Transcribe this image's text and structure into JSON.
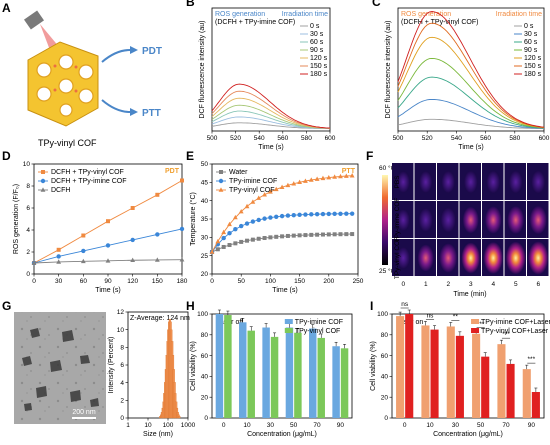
{
  "panels": {
    "A": {
      "label": "A",
      "caption": "TPy-vinyl COF",
      "pdt": "PDT",
      "ptt": "PTT",
      "colors": {
        "pdt": "#4a86c8",
        "ptt": "#4a86c8"
      }
    },
    "F": {
      "label": "F",
      "rows": [
        "PBS",
        "TPy-imine COF",
        "TPy-vinyl COF"
      ],
      "xticks": [
        "0",
        "1",
        "2",
        "3",
        "4",
        "5",
        "6"
      ],
      "xlabel": "Time (min)",
      "cbar": {
        "max": "60 °C",
        "min": "25 °C"
      },
      "intensity": [
        [
          0.1,
          0.12,
          0.14,
          0.16,
          0.17,
          0.18,
          0.19
        ],
        [
          0.1,
          0.25,
          0.35,
          0.42,
          0.48,
          0.52,
          0.55
        ],
        [
          0.12,
          0.45,
          0.62,
          0.74,
          0.82,
          0.88,
          0.92
        ]
      ]
    },
    "G": {
      "label": "G",
      "scalebar": "200 nm",
      "hist_title": "Z-Average: 124 nm",
      "xlabel": "Size (nm)",
      "ylabel": "Intensity (Percent)"
    }
  },
  "chart_data": [
    {
      "id": "B",
      "type": "line",
      "label": "B",
      "legend_title_left": "ROS generation",
      "legend_subtitle": "(DCFH + TPy-imine COF)",
      "legend_title_right": "Irradiation time",
      "xlabel": "Time (s)",
      "ylabel": "DCF fluorescence intensity (au)",
      "xlim": [
        500,
        600
      ],
      "xticks": [
        "500",
        "520",
        "540",
        "560",
        "580",
        "600"
      ],
      "series": [
        {
          "name": "0 s",
          "color": "#a0a0a0",
          "peak": 0.05
        },
        {
          "name": "30 s",
          "color": "#9dbfe0",
          "peak": 0.1
        },
        {
          "name": "60 s",
          "color": "#8ac6b8",
          "peak": 0.15
        },
        {
          "name": "90 s",
          "color": "#a8c878",
          "peak": 0.2
        },
        {
          "name": "120 s",
          "color": "#e5b860",
          "peak": 0.26
        },
        {
          "name": "150 s",
          "color": "#e5885a",
          "peak": 0.32
        },
        {
          "name": "180 s",
          "color": "#d02020",
          "peak": 0.38
        }
      ],
      "ymax": 1.05
    },
    {
      "id": "C",
      "type": "line",
      "label": "C",
      "legend_title_left": "ROS generation",
      "legend_subtitle": "(DCFH + TPy-vinyl COF)",
      "legend_title_right": "Irradiation time",
      "xlabel": "Time (s)",
      "ylabel": "DCF fluorescence intensity (au)",
      "xlim": [
        500,
        600
      ],
      "xticks": [
        "500",
        "520",
        "540",
        "560",
        "580",
        "600"
      ],
      "series": [
        {
          "name": "0 s",
          "color": "#a0a0a0",
          "peak": 0.08
        },
        {
          "name": "30 s",
          "color": "#4a86c8",
          "peak": 0.25
        },
        {
          "name": "60 s",
          "color": "#3aa88a",
          "peak": 0.44
        },
        {
          "name": "90 s",
          "color": "#7ab83a",
          "peak": 0.6
        },
        {
          "name": "120 s",
          "color": "#e0a020",
          "peak": 0.78
        },
        {
          "name": "150 s",
          "color": "#e06a20",
          "peak": 0.9
        },
        {
          "name": "180 s",
          "color": "#d02020",
          "peak": 1.0
        }
      ],
      "ymax": 1.05
    },
    {
      "id": "D",
      "type": "line",
      "label": "D",
      "annotation": "PDT",
      "annotation_color": "#f0a030",
      "xlabel": "Time (s)",
      "ylabel": "ROS generation (F/F₀)",
      "x": [
        0,
        30,
        60,
        90,
        120,
        150,
        180
      ],
      "xticks": [
        "0",
        "30",
        "60",
        "90",
        "120",
        "150",
        "180"
      ],
      "yticks": [
        "0",
        "2",
        "4",
        "6",
        "8",
        "10"
      ],
      "ylim": [
        0,
        10
      ],
      "series": [
        {
          "name": "DCFH + TPy-vinyl COF",
          "color": "#f08a40",
          "marker": "square",
          "values": [
            1.0,
            2.2,
            3.5,
            4.8,
            6.0,
            7.2,
            8.5
          ]
        },
        {
          "name": "DCFH + TPy-imine COF",
          "color": "#3a86d8",
          "marker": "circle",
          "values": [
            1.0,
            1.6,
            2.1,
            2.6,
            3.1,
            3.6,
            4.1
          ]
        },
        {
          "name": "DCFH",
          "color": "#808080",
          "marker": "triangle",
          "values": [
            1.0,
            1.1,
            1.15,
            1.2,
            1.25,
            1.28,
            1.3
          ]
        }
      ]
    },
    {
      "id": "E",
      "type": "line",
      "label": "E",
      "annotation": "PTT",
      "annotation_color": "#f0a030",
      "xlabel": "Time (s)",
      "ylabel": "Temperature (°C)",
      "xlim": [
        0,
        250
      ],
      "ylim": [
        20,
        50
      ],
      "xticks": [
        "0",
        "50",
        "100",
        "150",
        "200",
        "250"
      ],
      "yticks": [
        "20",
        "25",
        "30",
        "35",
        "40",
        "45",
        "50"
      ],
      "series": [
        {
          "name": "Water",
          "color": "#808080",
          "marker": "square",
          "plateau": 31.0,
          "rate": 0.01
        },
        {
          "name": "TPy-imine COF",
          "color": "#3a86d8",
          "marker": "circle",
          "plateau": 36.5,
          "rate": 0.014
        },
        {
          "name": "TPy-vinyl COF",
          "color": "#f08a40",
          "marker": "triangle",
          "plateau": 47.5,
          "rate": 0.009
        }
      ],
      "start": 26.0
    },
    {
      "id": "G",
      "type": "bar",
      "label": "G-hist",
      "xlabel": "Size (nm)",
      "ylabel": "Intensity (Percent)",
      "xticks": [
        "1",
        "10",
        "100",
        "1000"
      ],
      "yticks": [
        "0",
        "2",
        "4",
        "6",
        "8",
        "10",
        "12"
      ],
      "ylim": [
        0,
        12
      ],
      "center": 124,
      "peak": 11.2
    },
    {
      "id": "H",
      "type": "bar",
      "label": "H",
      "annotation": "Laser off",
      "xlabel": "Concentration (μg/mL)",
      "ylabel": "Cell viability (%)",
      "categories": [
        "0",
        "10",
        "30",
        "50",
        "70",
        "90"
      ],
      "yticks": [
        "0",
        "20",
        "40",
        "60",
        "80",
        "100"
      ],
      "ylim": [
        0,
        100
      ],
      "series": [
        {
          "name": "TPy-imine COF",
          "color": "#6aa8e0",
          "values": [
            100,
            92,
            87,
            87,
            86,
            69
          ]
        },
        {
          "name": "TPy-vinyl COF",
          "color": "#7cc85a",
          "values": [
            99,
            84,
            78,
            82,
            77,
            67
          ]
        }
      ]
    },
    {
      "id": "I",
      "type": "bar",
      "label": "I",
      "annotation": "Laser on",
      "xlabel": "Concentration (μg/mL)",
      "ylabel": "Cell viability (%)",
      "categories": [
        "0",
        "10",
        "30",
        "50",
        "70",
        "90"
      ],
      "yticks": [
        "0",
        "20",
        "40",
        "60",
        "80",
        "100"
      ],
      "ylim": [
        0,
        100
      ],
      "series": [
        {
          "name": "TPy-imine COF+Laser",
          "color": "#f0a070",
          "values": [
            98,
            89,
            88,
            81,
            71,
            47
          ]
        },
        {
          "name": "TPy-vinyl COF+Laser",
          "color": "#e02020",
          "values": [
            100,
            85,
            79,
            59,
            52,
            25
          ]
        }
      ],
      "significance": [
        "ns",
        "ns",
        "**",
        "***",
        "***",
        "***"
      ]
    }
  ]
}
